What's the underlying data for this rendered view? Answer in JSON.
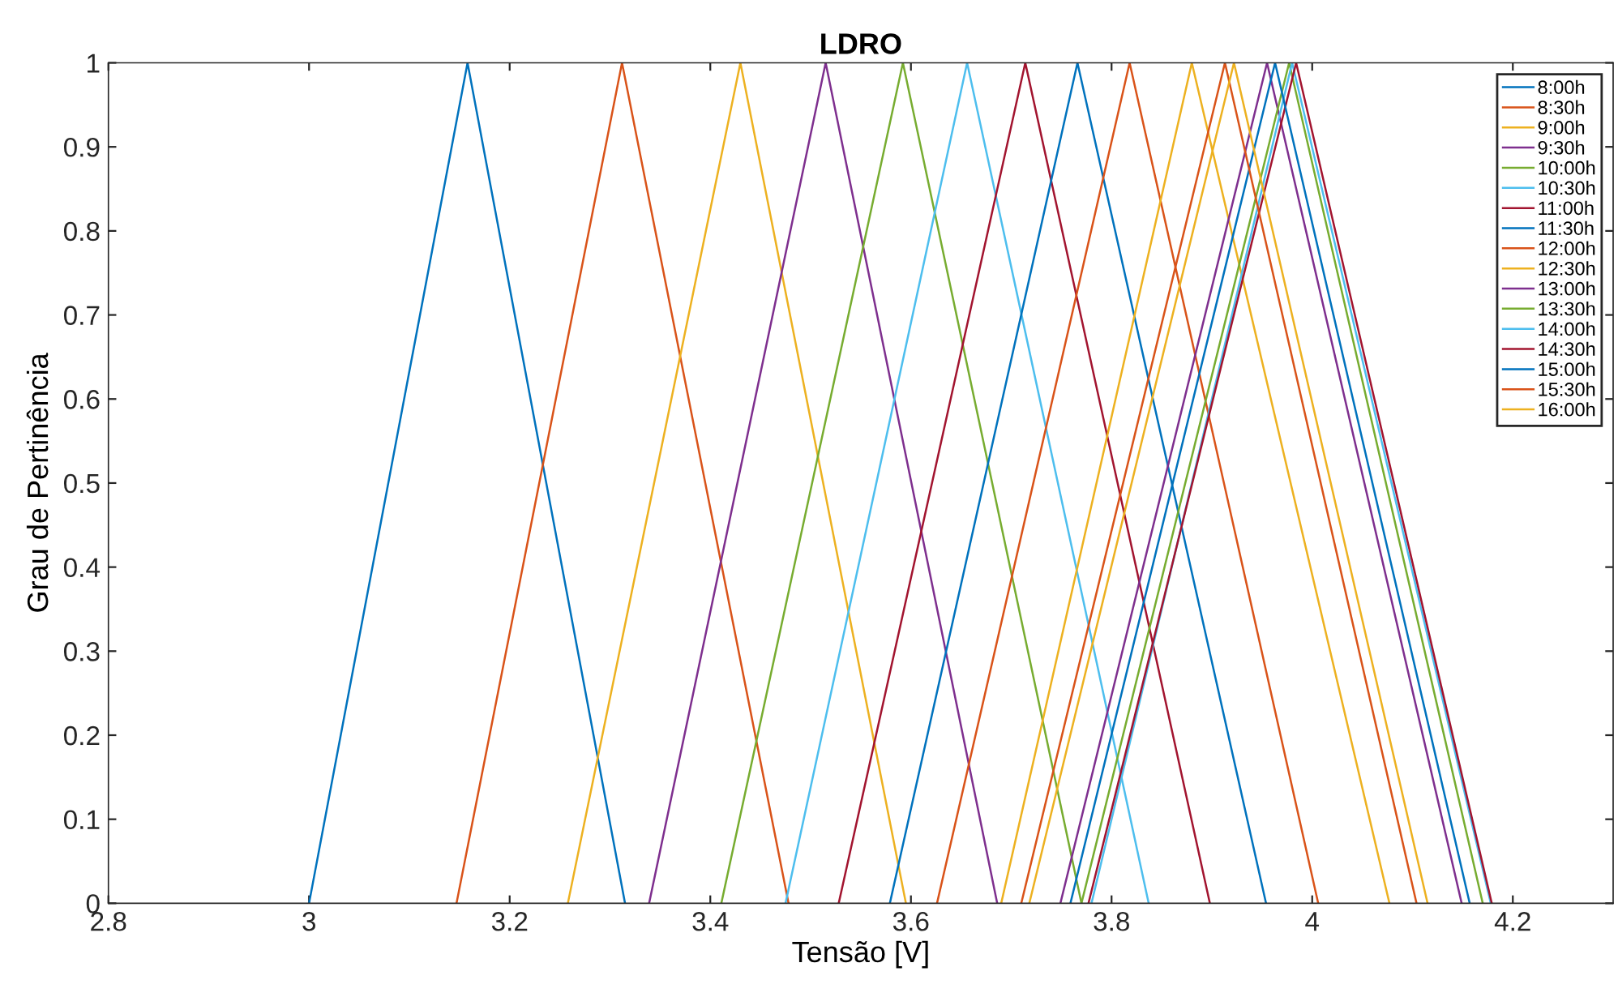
{
  "chart_data": {
    "type": "line",
    "title": "LDRO",
    "xlabel": "Tensão [V]",
    "ylabel": "Grau de Pertinência",
    "xlim": [
      2.8,
      4.3
    ],
    "xticks": [
      2.8,
      3,
      3.2,
      3.4,
      3.6,
      3.8,
      4,
      4.2
    ],
    "ylim": [
      0,
      1
    ],
    "yticks": [
      0,
      0.1,
      0.2,
      0.3,
      0.4,
      0.5,
      0.6,
      0.7,
      0.8,
      0.9,
      1
    ],
    "grid": false,
    "legend": "top right",
    "marker": "none",
    "line_style": "solid",
    "series": [
      {
        "name": "8:00h",
        "color": "#0072bd",
        "x": [
          3.0,
          3.158,
          3.315
        ],
        "values": [
          0,
          1,
          0
        ]
      },
      {
        "name": "8:30h",
        "color": "#d95319",
        "x": [
          3.147,
          3.312,
          3.478
        ],
        "values": [
          0,
          1,
          0
        ]
      },
      {
        "name": "9:00h",
        "color": "#edb120",
        "x": [
          3.258,
          3.43,
          3.595
        ],
        "values": [
          0,
          1,
          0
        ]
      },
      {
        "name": "9:30h",
        "color": "#7e2f8e",
        "x": [
          3.339,
          3.515,
          3.686
        ],
        "values": [
          0,
          1,
          0
        ]
      },
      {
        "name": "10:00h",
        "color": "#77ac30",
        "x": [
          3.411,
          3.592,
          3.77
        ],
        "values": [
          0,
          1,
          0
        ]
      },
      {
        "name": "10:30h",
        "color": "#4dbeee",
        "x": [
          3.475,
          3.656,
          3.837
        ],
        "values": [
          0,
          1,
          0
        ]
      },
      {
        "name": "11:00h",
        "color": "#a2142f",
        "x": [
          3.528,
          3.714,
          3.898
        ],
        "values": [
          0,
          1,
          0
        ]
      },
      {
        "name": "11:30h",
        "color": "#0072bd",
        "x": [
          3.579,
          3.766,
          3.954
        ],
        "values": [
          0,
          1,
          0
        ]
      },
      {
        "name": "12:00h",
        "color": "#d95319",
        "x": [
          3.626,
          3.818,
          4.006
        ],
        "values": [
          0,
          1,
          0
        ]
      },
      {
        "name": "12:30h",
        "color": "#edb120",
        "x": [
          3.69,
          3.88,
          4.077
        ],
        "values": [
          0,
          1,
          0
        ]
      },
      {
        "name": "13:00h",
        "color": "#7e2f8e",
        "x": [
          3.749,
          3.955,
          4.149
        ],
        "values": [
          0,
          1,
          0
        ]
      },
      {
        "name": "13:30h",
        "color": "#77ac30",
        "x": [
          3.77,
          3.977,
          4.17
        ],
        "values": [
          0,
          1,
          0
        ]
      },
      {
        "name": "14:00h",
        "color": "#4dbeee",
        "x": [
          3.78,
          3.98,
          4.178
        ],
        "values": [
          0,
          1,
          0
        ]
      },
      {
        "name": "14:30h",
        "color": "#a2142f",
        "x": [
          3.777,
          3.984,
          4.179
        ],
        "values": [
          0,
          1,
          0
        ]
      },
      {
        "name": "15:00h",
        "color": "#0072bd",
        "x": [
          3.759,
          3.963,
          4.157
        ],
        "values": [
          0,
          1,
          0
        ]
      },
      {
        "name": "15:30h",
        "color": "#d95319",
        "x": [
          3.71,
          3.913,
          4.104
        ],
        "values": [
          0,
          1,
          0
        ]
      },
      {
        "name": "16:00h",
        "color": "#edb120",
        "x": [
          3.718,
          3.922,
          4.115
        ],
        "values": [
          0,
          1,
          0
        ]
      }
    ]
  }
}
